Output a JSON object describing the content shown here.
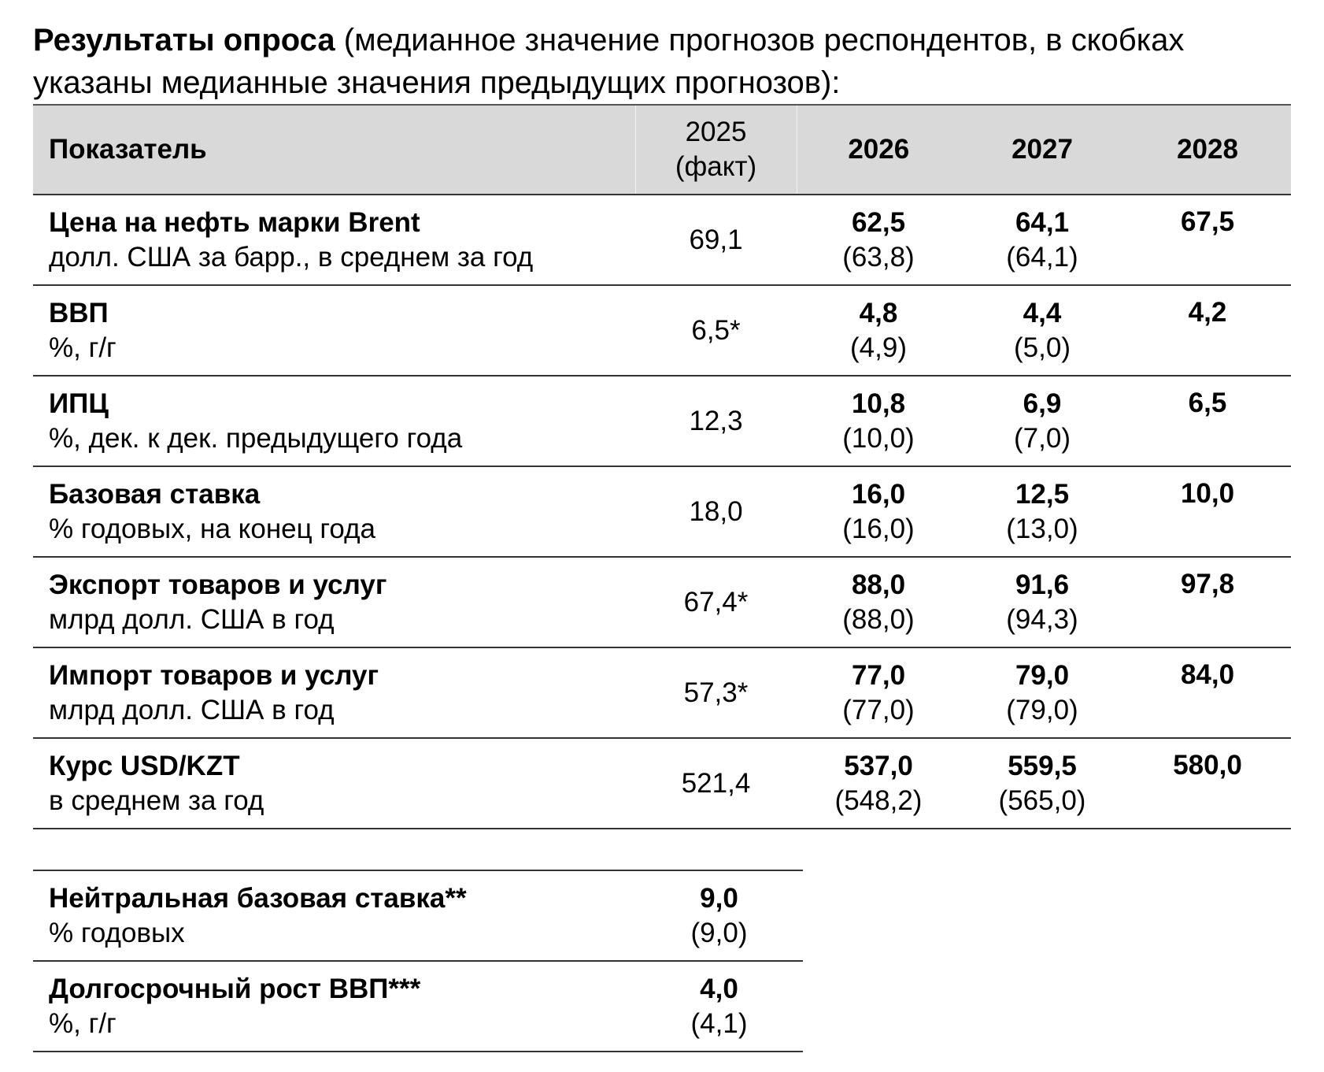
{
  "heading": {
    "bold": "Результаты опроса",
    "rest": " (медианное значение прогнозов респондентов, в скобках указаны медианные значения предыдущих прогнозов):"
  },
  "main_table": {
    "headers": {
      "indicator": "Показатель",
      "fact_line1": "2025",
      "fact_line2": "(факт)",
      "y2026": "2026",
      "y2027": "2027",
      "y2028": "2028"
    },
    "rows": [
      {
        "name": "Цена на нефть марки Brent",
        "unit": "долл. США за барр., в среднем за год",
        "fact": "69,1",
        "v2026": "62,5",
        "p2026": "(63,8)",
        "v2027": "64,1",
        "p2027": "(64,1)",
        "v2028": "67,5"
      },
      {
        "name": "ВВП",
        "unit": "%, г/г",
        "fact": "6,5*",
        "v2026": "4,8",
        "p2026": "(4,9)",
        "v2027": "4,4",
        "p2027": "(5,0)",
        "v2028": "4,2"
      },
      {
        "name": "ИПЦ",
        "unit": "%, дек. к дек. предыдущего года",
        "fact": "12,3",
        "v2026": "10,8",
        "p2026": "(10,0)",
        "v2027": "6,9",
        "p2027": "(7,0)",
        "v2028": "6,5"
      },
      {
        "name": "Базовая ставка",
        "unit": "% годовых, на конец года",
        "fact": "18,0",
        "v2026": "16,0",
        "p2026": "(16,0)",
        "v2027": "12,5",
        "p2027": "(13,0)",
        "v2028": "10,0"
      },
      {
        "name": "Экспорт товаров и услуг",
        "unit": "млрд долл. США в год",
        "fact": "67,4*",
        "v2026": "88,0",
        "p2026": "(88,0)",
        "v2027": "91,6",
        "p2027": "(94,3)",
        "v2028": "97,8"
      },
      {
        "name": "Импорт товаров и услуг",
        "unit": "млрд долл. США в год",
        "fact": "57,3*",
        "v2026": "77,0",
        "p2026": "(77,0)",
        "v2027": "79,0",
        "p2027": "(79,0)",
        "v2028": "84,0"
      },
      {
        "name": "Курс USD/KZT",
        "unit": "в среднем за год",
        "fact": "521,4",
        "v2026": "537,0",
        "p2026": "(548,2)",
        "v2027": "559,5",
        "p2027": "(565,0)",
        "v2028": "580,0"
      }
    ]
  },
  "extra_table": {
    "rows": [
      {
        "name": "Нейтральная базовая ставка**",
        "unit": "% годовых",
        "value": "9,0",
        "prev": "(9,0)"
      },
      {
        "name": "Долгосрочный рост ВВП***",
        "unit": "%, г/г",
        "value": "4,0",
        "prev": "(4,1)"
      }
    ]
  }
}
